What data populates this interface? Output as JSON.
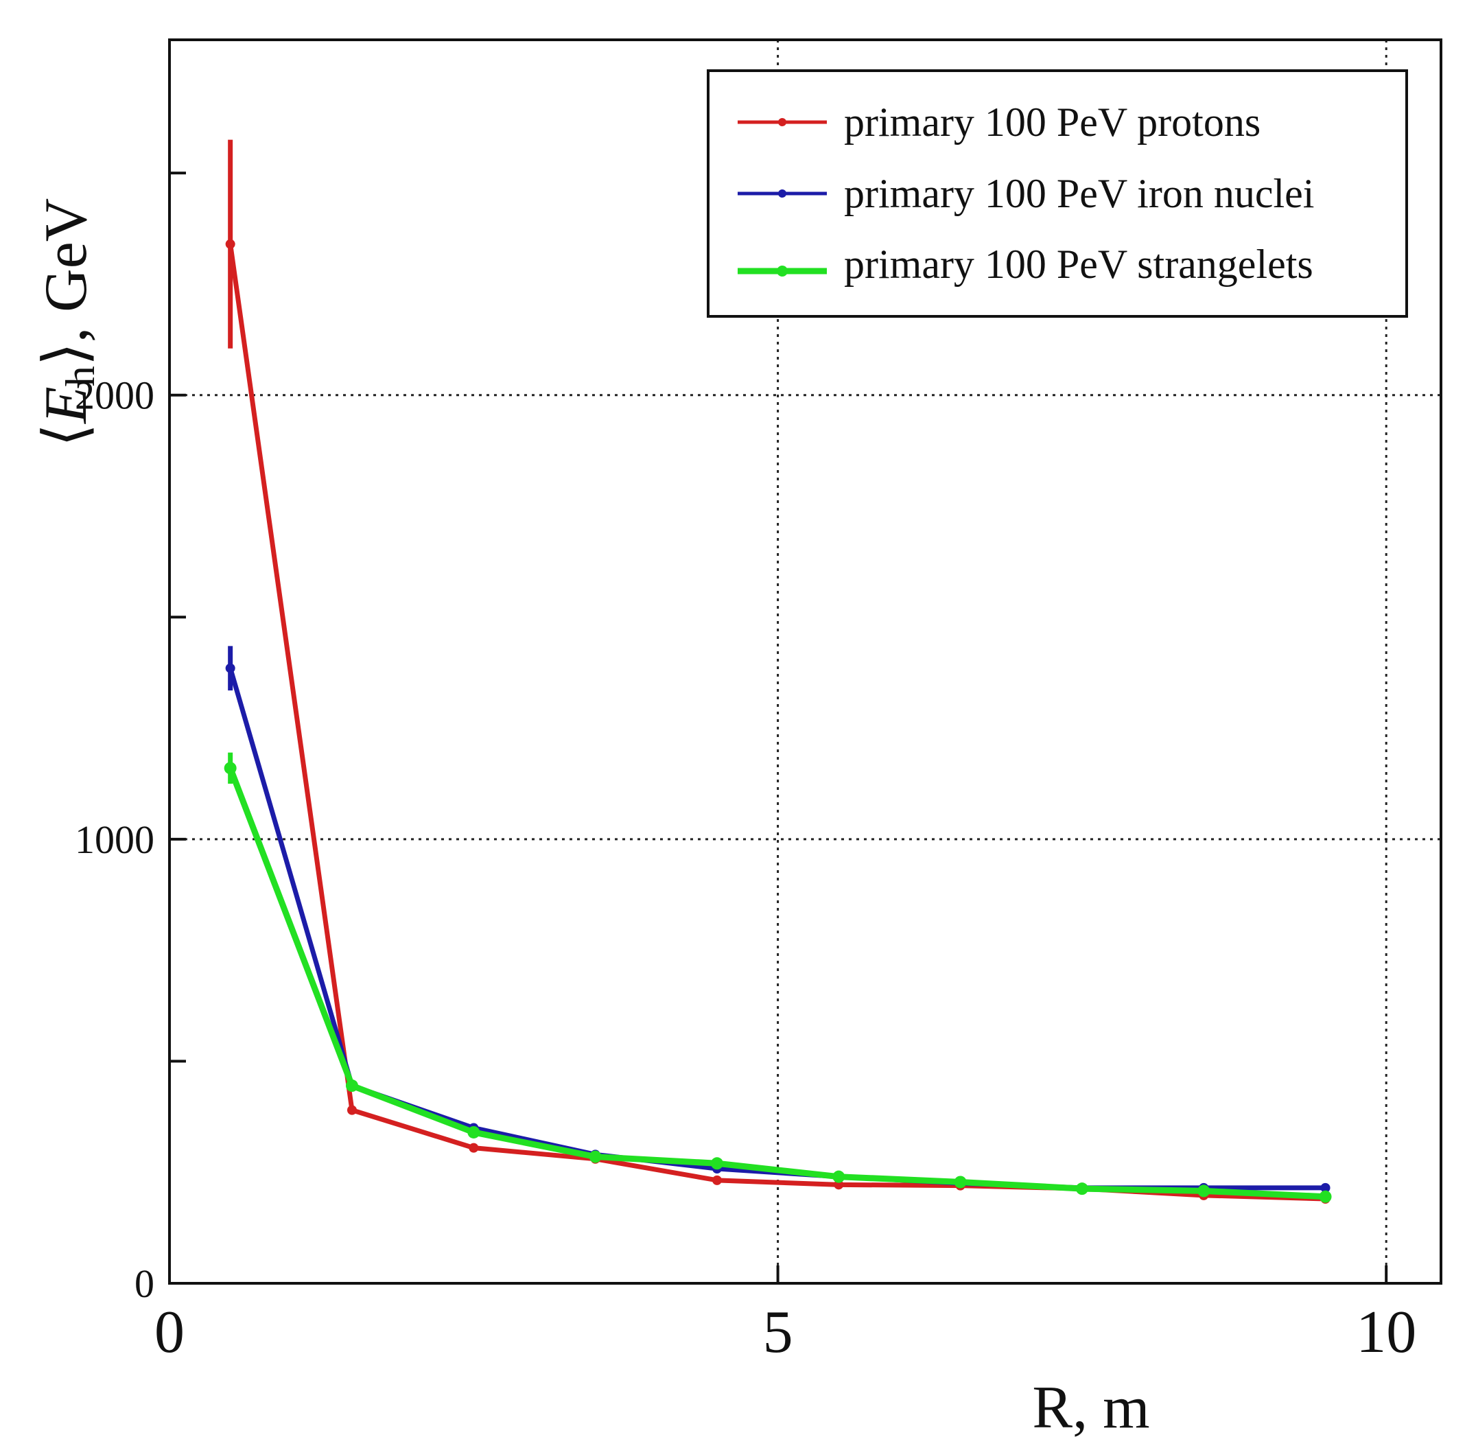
{
  "chart_data": {
    "type": "line",
    "title": "",
    "xlabel": "R, m",
    "ylabel": "⟨E_h⟩, GeV",
    "ylabel_parts": {
      "open": "⟨",
      "E": "E",
      "sub": "h",
      "close": "⟩, GeV"
    },
    "xlim": [
      0,
      10.45
    ],
    "ylim": [
      0,
      2800
    ],
    "x_ticks": [
      0,
      5,
      10
    ],
    "x_tick_labels": [
      "0",
      "5",
      "10"
    ],
    "y_ticks": [
      0,
      500,
      1000,
      1500,
      2000,
      2500
    ],
    "y_tick_labels": [
      "0",
      "",
      "1000",
      "",
      "2000",
      ""
    ],
    "x_grid": [
      5,
      10
    ],
    "y_grid": [
      1000,
      2000
    ],
    "legend_position": "top-right",
    "x": [
      0.5,
      1.5,
      2.5,
      3.5,
      4.5,
      5.5,
      6.5,
      7.5,
      8.5,
      9.5
    ],
    "series": [
      {
        "name": "primary 100 PeV protons",
        "color": "#d42020",
        "values": [
          2340,
          390,
          305,
          280,
          232,
          222,
          220,
          213,
          198,
          190
        ],
        "errors": [
          235,
          0,
          0,
          0,
          0,
          0,
          0,
          0,
          0,
          0
        ]
      },
      {
        "name": "primary 100 PeV iron nuclei",
        "color": "#1c1ca8",
        "values": [
          1385,
          445,
          350,
          290,
          258,
          240,
          225,
          215,
          215,
          215
        ],
        "errors": [
          50,
          0,
          0,
          0,
          0,
          0,
          0,
          0,
          0,
          0
        ]
      },
      {
        "name": "primary 100 PeV strangelets",
        "color": "#22e022",
        "values": [
          1160,
          445,
          340,
          285,
          270,
          240,
          228,
          213,
          208,
          195
        ],
        "errors": [
          35,
          0,
          0,
          0,
          0,
          0,
          0,
          0,
          0,
          0
        ]
      }
    ]
  }
}
